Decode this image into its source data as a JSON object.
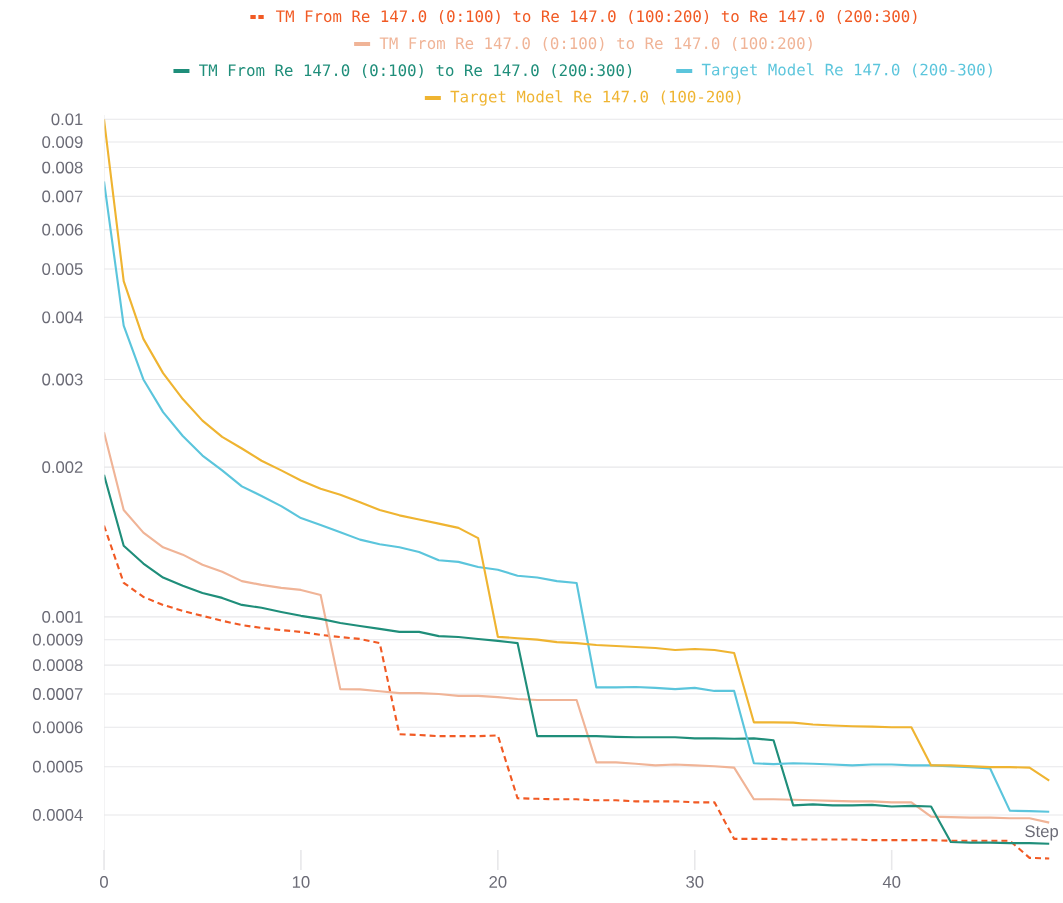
{
  "chart_data": {
    "type": "line",
    "xlabel": "Step",
    "x": [
      0,
      1,
      2,
      3,
      4,
      5,
      6,
      7,
      8,
      9,
      10,
      11,
      12,
      13,
      14,
      15,
      16,
      17,
      18,
      19,
      20,
      21,
      22,
      23,
      24,
      25,
      26,
      27,
      28,
      29,
      30,
      31,
      32,
      33,
      34,
      35,
      36,
      37,
      38,
      39,
      40,
      41,
      42,
      43,
      44,
      45,
      46,
      47,
      48
    ],
    "xlim": [
      0,
      48.7
    ],
    "xticks": [
      0,
      10,
      20,
      30,
      40
    ],
    "ylim": [
      0.00031,
      0.0102
    ],
    "log": "y",
    "grid": "y",
    "legend": "top",
    "yticks": [
      0.0004,
      0.0005,
      0.0006,
      0.0007,
      0.0008,
      0.0009,
      0.001,
      0.002,
      0.003,
      0.004,
      0.005,
      0.006,
      0.007,
      0.008,
      0.009,
      0.01
    ],
    "series": [
      {
        "name": "TM From Re 147.0 (0:100) to Re 147.0 (100:200) to Re 147.0 (200:300)",
        "color": "#f15a24",
        "line_style": "dashed",
        "values": [
          0.001526,
          0.001171,
          0.001097,
          0.001057,
          0.001028,
          0.001005,
          0.000982,
          0.000963,
          0.00095,
          0.000941,
          0.000933,
          0.00092,
          0.000911,
          0.000903,
          0.000886,
          0.000581,
          0.000579,
          0.000576,
          0.000576,
          0.000576,
          0.000578,
          0.000432,
          0.000431,
          0.00043,
          0.00043,
          0.000428,
          0.000428,
          0.000426,
          0.000426,
          0.000426,
          0.000424,
          0.000424,
          0.000358,
          0.000358,
          0.000358,
          0.000357,
          0.000357,
          0.000357,
          0.000357,
          0.000356,
          0.000356,
          0.000356,
          0.000356,
          0.000355,
          0.000355,
          0.000355,
          0.000355,
          0.000328,
          0.000327
        ]
      },
      {
        "name": "TM From Re 147.0 (0:100) to Re 147.0 (100:200)",
        "color": "#f0b497",
        "line_style": "solid",
        "values": [
          0.00235,
          0.00164,
          0.001477,
          0.00138,
          0.001334,
          0.001273,
          0.001232,
          0.00118,
          0.00116,
          0.001144,
          0.001133,
          0.001107,
          0.000716,
          0.000715,
          0.000709,
          0.000703,
          0.000703,
          0.0007,
          0.000694,
          0.000694,
          0.00069,
          0.000684,
          0.000681,
          0.000681,
          0.000681,
          0.00051,
          0.00051,
          0.000507,
          0.000503,
          0.000505,
          0.000503,
          0.000501,
          0.000498,
          0.00043,
          0.00043,
          0.000429,
          0.000428,
          0.000427,
          0.000426,
          0.000426,
          0.000424,
          0.000424,
          0.000397,
          0.000396,
          0.000395,
          0.000395,
          0.000394,
          0.000394,
          0.000386
        ]
      },
      {
        "name": "TM From Re 147.0 (0:100) to Re 147.0 (200:300)",
        "color": "#1f8e7a",
        "line_style": "solid",
        "values": [
          0.00193,
          0.00139,
          0.00128,
          0.0012,
          0.001155,
          0.001117,
          0.001092,
          0.001057,
          0.001043,
          0.001023,
          0.001005,
          0.000991,
          0.000972,
          0.000959,
          0.000946,
          0.000933,
          0.000933,
          0.000915,
          0.000911,
          0.000903,
          0.000895,
          0.000886,
          0.000576,
          0.000576,
          0.000576,
          0.000576,
          0.000574,
          0.000573,
          0.000573,
          0.000573,
          0.00057,
          0.00057,
          0.000569,
          0.00057,
          0.000565,
          0.000418,
          0.00042,
          0.000418,
          0.000418,
          0.000419,
          0.000416,
          0.000417,
          0.000416,
          0.000353,
          0.000352,
          0.000352,
          0.000351,
          0.000351,
          0.00035
        ]
      },
      {
        "name": "Target Model Re 147.0 (200-300)",
        "color": "#5bc5dc",
        "line_style": "solid",
        "values": [
          0.0075,
          0.00385,
          0.003,
          0.00258,
          0.00231,
          0.00211,
          0.00197,
          0.00183,
          0.00175,
          0.00167,
          0.00158,
          0.00153,
          0.00148,
          0.00143,
          0.0014,
          0.00138,
          0.00135,
          0.0013,
          0.00129,
          0.00126,
          0.001244,
          0.00121,
          0.0012,
          0.00118,
          0.00117,
          0.000722,
          0.000722,
          0.000723,
          0.00072,
          0.000716,
          0.00072,
          0.00071,
          0.00071,
          0.000508,
          0.000506,
          0.000508,
          0.000507,
          0.000505,
          0.000503,
          0.000505,
          0.000505,
          0.000503,
          0.000503,
          0.000501,
          0.000499,
          0.000496,
          0.000408,
          0.000407,
          0.000406
        ]
      },
      {
        "name": "Target Model Re 147.0 (100-200)",
        "color": "#efb431",
        "line_style": "solid",
        "values": [
          0.01,
          0.00473,
          0.00362,
          0.00309,
          0.00274,
          0.00248,
          0.0023,
          0.00218,
          0.00206,
          0.00197,
          0.00188,
          0.00181,
          0.00176,
          0.0017,
          0.00164,
          0.0016,
          0.00157,
          0.00154,
          0.00151,
          0.00144,
          0.000912,
          0.000906,
          0.0009,
          0.00089,
          0.000886,
          0.000878,
          0.000874,
          0.00087,
          0.000866,
          0.000858,
          0.000862,
          0.000858,
          0.000846,
          0.000614,
          0.000614,
          0.000613,
          0.000608,
          0.000605,
          0.000603,
          0.000602,
          0.0006,
          0.0006,
          0.000503,
          0.000503,
          0.000501,
          0.000499,
          0.000499,
          0.000498,
          0.000469
        ]
      }
    ]
  }
}
